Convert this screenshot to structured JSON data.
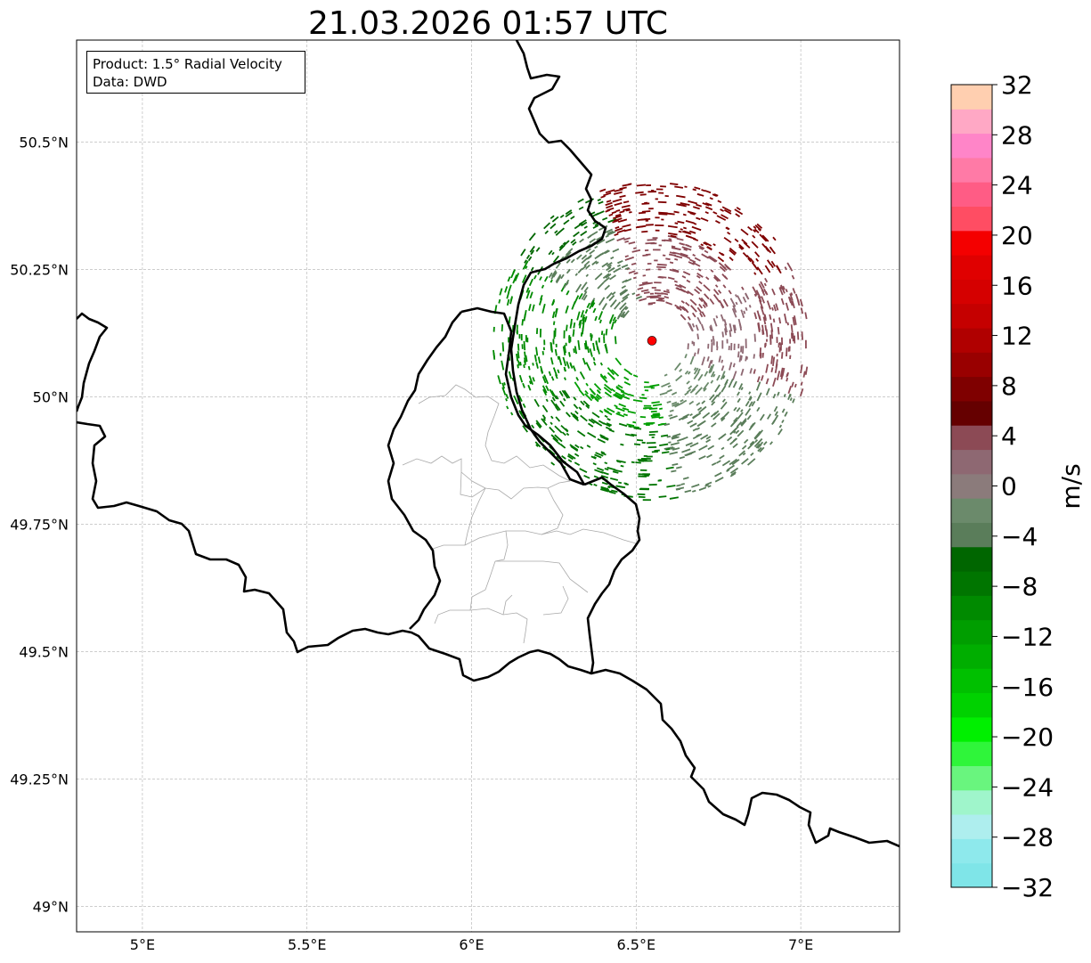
{
  "title": "21.03.2026 01:57 UTC",
  "info_box": {
    "product": "Product: 1.5° Radial Velocity",
    "data": "Data: DWD"
  },
  "map": {
    "lon_range": [
      4.8,
      7.3
    ],
    "lat_range": [
      48.95,
      50.7
    ],
    "x_ticks": [
      {
        "value": 5.0,
        "label": "5°E"
      },
      {
        "value": 5.5,
        "label": "5.5°E"
      },
      {
        "value": 6.0,
        "label": "6°E"
      },
      {
        "value": 6.5,
        "label": "6.5°E"
      },
      {
        "value": 7.0,
        "label": "7°E"
      }
    ],
    "y_ticks": [
      {
        "value": 50.5,
        "label": "50.5°N"
      },
      {
        "value": 50.25,
        "label": "50.25°N"
      },
      {
        "value": 50.0,
        "label": "50°N"
      },
      {
        "value": 49.75,
        "label": "49.75°N"
      },
      {
        "value": 49.5,
        "label": "49.5°N"
      },
      {
        "value": 49.25,
        "label": "49.25°N"
      },
      {
        "value": 49.0,
        "label": "49°N"
      }
    ],
    "radar_site": {
      "lon": 6.548,
      "lat": 50.11,
      "color": "#ff0000"
    },
    "gridlines": true
  },
  "colorbar": {
    "label": "m/s",
    "min": -32,
    "max": 32,
    "tick_labels": [
      "32",
      "28",
      "24",
      "20",
      "16",
      "12",
      "8",
      "4",
      "0",
      "−4",
      "−8",
      "−12",
      "−16",
      "−20",
      "−24",
      "−28",
      "−32"
    ],
    "tick_values": [
      32,
      28,
      24,
      20,
      16,
      12,
      8,
      4,
      0,
      -4,
      -8,
      -12,
      -16,
      -20,
      -24,
      -28,
      -32
    ],
    "colors_bottom_to_top": [
      "#7fe5e8",
      "#8ee9ec",
      "#aeeeee",
      "#9ff5cb",
      "#69f57e",
      "#2ff53a",
      "#00f000",
      "#00d200",
      "#00c000",
      "#00ae00",
      "#009e00",
      "#008a00",
      "#007500",
      "#006600",
      "#5a7d5a",
      "#6b8a6b",
      "#8b7b7b",
      "#8e6872",
      "#8c4a55",
      "#650000",
      "#7f0000",
      "#990000",
      "#b00000",
      "#c50000",
      "#d50000",
      "#e00000",
      "#f40000",
      "#ff4d63",
      "#ff5c85",
      "#ff7aa6",
      "#ff85c8",
      "#ffa8c5",
      "#ffcfb0"
    ]
  },
  "colors": {
    "border": "#000000",
    "admin_border": "#a9a9a9",
    "grid": "#b0b0b0"
  }
}
